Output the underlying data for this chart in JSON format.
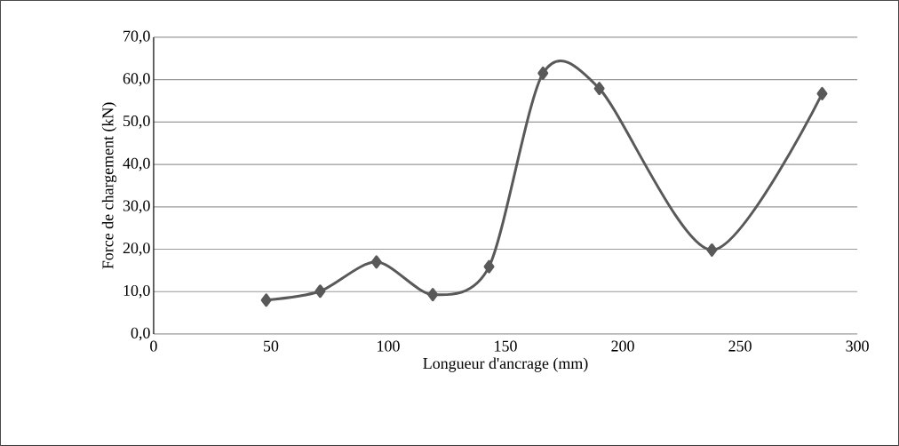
{
  "chart_data": {
    "type": "line",
    "xlabel": "Longueur d'ancrage (mm)",
    "ylabel": "Force de chargement (kN)",
    "x": [
      48,
      71,
      95,
      119,
      143,
      166,
      190,
      238,
      285
    ],
    "series": [
      {
        "color": "#595959",
        "values": [
          8.0,
          10.1,
          17.0,
          9.3,
          15.9,
          61.5,
          57.9,
          19.8,
          56.7
        ]
      }
    ],
    "xlim": [
      0,
      300
    ],
    "xticks": [
      0,
      50,
      100,
      150,
      200,
      250,
      300
    ],
    "ylim": [
      0,
      70
    ],
    "yticks": [
      {
        "value": 0,
        "label": "0,0"
      },
      {
        "value": 10,
        "label": "10,0"
      },
      {
        "value": 20,
        "label": "20,0"
      },
      {
        "value": 30,
        "label": "30,0"
      },
      {
        "value": 40,
        "label": "40,0"
      },
      {
        "value": 50,
        "label": "50,0"
      },
      {
        "value": 60,
        "label": "60,0"
      },
      {
        "value": 70,
        "label": "70,0"
      }
    ],
    "grid": "y",
    "marker": "diamond",
    "line_style": "solid"
  }
}
